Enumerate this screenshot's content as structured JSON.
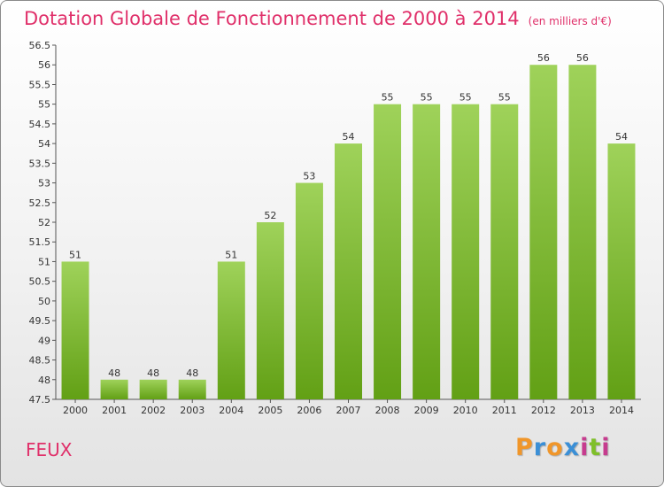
{
  "title": "Dotation Globale de Fonctionnement de 2000 à 2014",
  "subtitle": "(en milliers d'€)",
  "commune": "FEUX",
  "logo": {
    "letters": [
      "P",
      "r",
      "o",
      "x",
      "i",
      "t",
      "i"
    ],
    "colors": [
      "#f0962a",
      "#3b8fd6",
      "#f0962a",
      "#3b8fd6",
      "#c63c8e",
      "#7fbf2a",
      "#c63c8e"
    ]
  },
  "colors": {
    "bar_top": "#9fd25a",
    "bar_bottom": "#62a015",
    "title": "#e0306a"
  },
  "chart_data": {
    "type": "bar",
    "title": "Dotation Globale de Fonctionnement de 2000 à 2014",
    "xlabel": "",
    "ylabel": "",
    "ylim": [
      47.5,
      56.5
    ],
    "yticks": [
      "47.5",
      "48",
      "48.5",
      "49",
      "49.5",
      "50",
      "50.5",
      "51",
      "51.5",
      "52",
      "52.5",
      "53",
      "53.5",
      "54",
      "54.5",
      "55",
      "55.5",
      "56",
      "56.5"
    ],
    "categories": [
      "2000",
      "2001",
      "2002",
      "2003",
      "2004",
      "2005",
      "2006",
      "2007",
      "2008",
      "2009",
      "2010",
      "2011",
      "2012",
      "2013",
      "2014"
    ],
    "values": [
      51,
      48,
      48,
      48,
      51,
      52,
      53,
      54,
      55,
      55,
      55,
      55,
      56,
      56,
      54
    ],
    "grid": false
  }
}
